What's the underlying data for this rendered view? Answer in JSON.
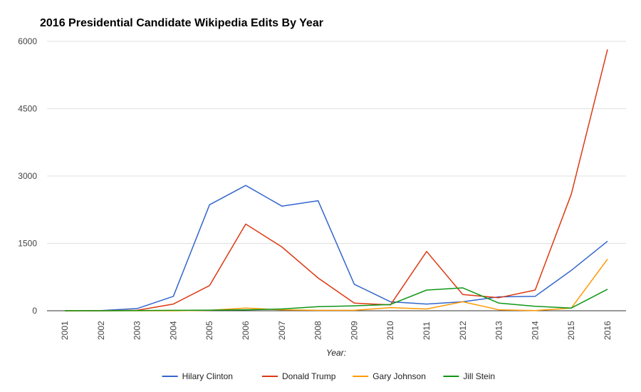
{
  "chart_data": {
    "type": "line",
    "title": "2016 Presidential Candidate Wikipedia Edits By Year",
    "xlabel": "Year:",
    "ylabel": "",
    "categories": [
      "2001",
      "2002",
      "2003",
      "2004",
      "2005",
      "2006",
      "2007",
      "2008",
      "2009",
      "2010",
      "2011",
      "2012",
      "2013",
      "2014",
      "2015",
      "2016"
    ],
    "ylim": [
      0,
      6000
    ],
    "yticks": [
      "0",
      "1500",
      "3000",
      "4500",
      "6000"
    ],
    "grid": true,
    "legend_position": "bottom",
    "series": [
      {
        "name": "Hilary Clinton",
        "color": "#3366cc",
        "values": [
          0,
          5,
          50,
          320,
          2360,
          2790,
          2330,
          2450,
          590,
          200,
          150,
          200,
          310,
          320,
          900,
          1550
        ]
      },
      {
        "name": "Donald Trump",
        "color": "#dc3912",
        "values": [
          0,
          0,
          10,
          150,
          560,
          1930,
          1420,
          730,
          170,
          130,
          1320,
          360,
          290,
          460,
          2600,
          5820
        ]
      },
      {
        "name": "Gary Johnson",
        "color": "#ff9900",
        "values": [
          0,
          0,
          0,
          0,
          10,
          60,
          20,
          10,
          10,
          70,
          40,
          200,
          20,
          5,
          60,
          1150
        ]
      },
      {
        "name": "Jill Stein",
        "color": "#109618",
        "values": [
          0,
          0,
          5,
          10,
          15,
          20,
          40,
          90,
          110,
          140,
          460,
          510,
          170,
          100,
          60,
          480
        ]
      }
    ]
  }
}
